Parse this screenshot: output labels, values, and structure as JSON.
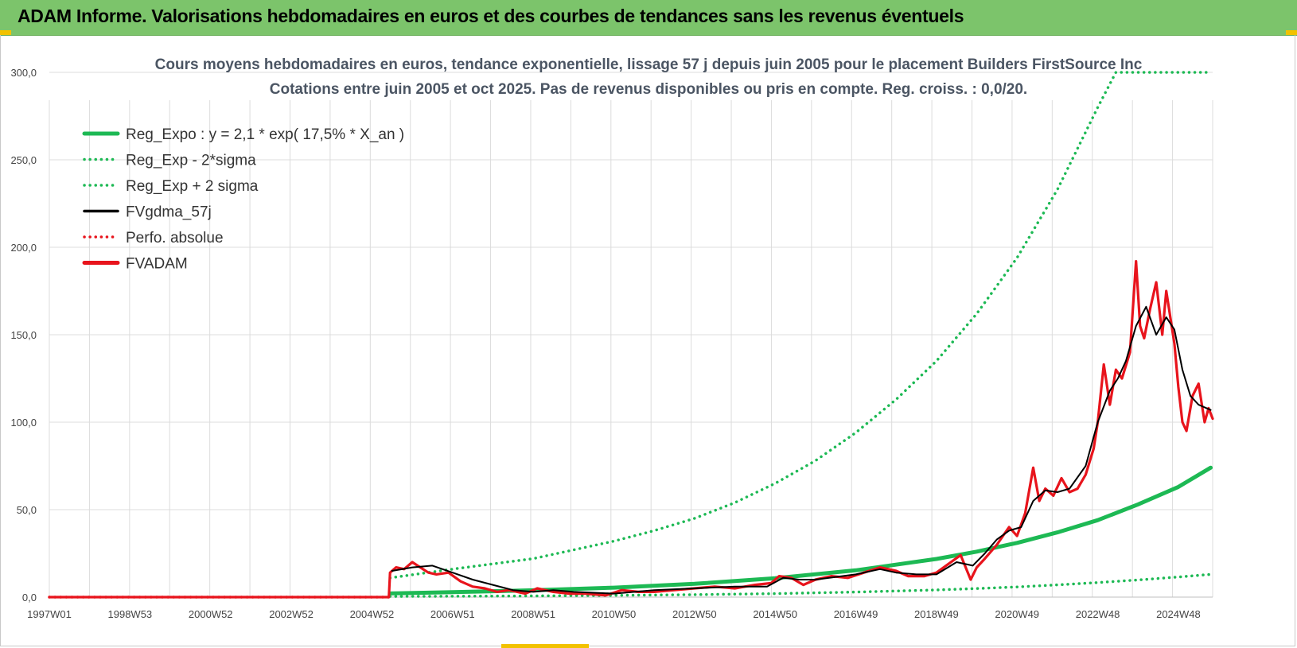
{
  "header": {
    "title": "ADAM Informe. Valorisations hebdomadaires en euros et des courbes de tendances sans les revenus éventuels"
  },
  "colors": {
    "banner": "#7cc46b",
    "trend_green": "#1db954",
    "gdma_black": "#000000",
    "adam_red": "#e8141c",
    "grid": "#dcdcdc"
  },
  "chart_data": {
    "type": "line",
    "title": "Cours moyens hebdomadaires en euros, tendance exponentielle, lissage 57 j depuis juin 2005 pour le placement Builders FirstSource Inc",
    "subtitle": "Cotations entre juin 2005 et oct 2025. Pas de revenus disponibles ou pris en compte. Reg. croiss. : 0,0/20.",
    "xlabel": "",
    "ylabel": "",
    "x_ticks": [
      "1997W01",
      "1998W53",
      "2000W52",
      "2002W52",
      "2004W52",
      "2006W51",
      "2008W51",
      "2010W50",
      "2012W50",
      "2014W50",
      "2016W49",
      "2018W49",
      "2020W49",
      "2022W48",
      "2024W48"
    ],
    "y_ticks": [
      "0,0",
      "50,0",
      "100,0",
      "150,0",
      "200,0",
      "250,0",
      "300,0"
    ],
    "xlim": [
      1997.0,
      2025.85
    ],
    "ylim": [
      0,
      300
    ],
    "grid": true,
    "legend_position": "top-left",
    "legend": [
      "Reg_Expo : y = 2,1 * exp( 17,5% *  X_an )",
      "Reg_Exp - 2*sigma",
      "Reg_Exp + 2 sigma",
      "FVgdma_57j",
      "Perfo. absolue",
      "FVADAM"
    ],
    "series": [
      {
        "name": "Reg_Expo : y = 2,1 * exp( 17,5% *  X_an )",
        "style": "solid-thick",
        "color": "#1db954",
        "x": [
          2005.45,
          2007,
          2009,
          2011,
          2013,
          2015,
          2017,
          2019,
          2020,
          2021,
          2022,
          2023,
          2024,
          2025,
          2025.8
        ],
        "y": [
          2.1,
          2.8,
          3.9,
          5.4,
          7.6,
          10.8,
          15.3,
          21.8,
          26,
          31,
          37,
          44,
          53,
          63,
          74
        ]
      },
      {
        "name": "Reg_Exp - 2*sigma",
        "style": "dotted",
        "color": "#1db954",
        "x": [
          2005.45,
          2007,
          2009,
          2011,
          2013,
          2015,
          2017,
          2019,
          2020,
          2021,
          2022,
          2023,
          2024,
          2025,
          2025.8
        ],
        "y": [
          0.4,
          0.5,
          0.7,
          1.0,
          1.4,
          2.0,
          2.9,
          4.1,
          4.9,
          5.8,
          7.0,
          8.3,
          9.8,
          11.5,
          13
        ]
      },
      {
        "name": "Reg_Exp + 2 sigma",
        "style": "dotted",
        "color": "#1db954",
        "x": [
          2005.45,
          2007,
          2009,
          2010,
          2011,
          2012,
          2013,
          2014,
          2015,
          2016,
          2017,
          2018,
          2019,
          2020,
          2021,
          2022,
          2023,
          2023.45,
          2024,
          2025,
          2025.8
        ],
        "y": [
          11,
          16,
          22,
          27,
          32,
          38,
          45,
          54,
          65,
          78,
          94,
          113,
          135,
          162,
          194,
          233,
          280,
          300,
          300,
          300,
          300
        ]
      },
      {
        "name": "FVgdma_57j",
        "style": "solid",
        "color": "#000000",
        "x": [
          2005.5,
          2006,
          2006.5,
          2007,
          2007.5,
          2008,
          2008.5,
          2009,
          2009.5,
          2010,
          2011,
          2012,
          2013,
          2014,
          2014.8,
          2015.2,
          2015.6,
          2016,
          2017,
          2017.6,
          2018,
          2018.5,
          2019,
          2019.5,
          2019.9,
          2020.2,
          2020.5,
          2020.8,
          2021.1,
          2021.4,
          2021.7,
          2022,
          2022.3,
          2022.7,
          2023,
          2023.3,
          2023.5,
          2023.7,
          2023.95,
          2024.2,
          2024.45,
          2024.7,
          2024.9,
          2025.1,
          2025.3,
          2025.5,
          2025.7,
          2025.8
        ],
        "y": [
          15,
          17,
          18,
          14,
          10,
          7,
          4,
          3,
          4,
          3,
          2,
          4,
          5,
          6,
          6,
          11,
          10,
          10,
          13,
          16,
          14,
          13,
          13,
          20,
          18,
          25,
          33,
          38,
          40,
          55,
          61,
          60,
          62,
          75,
          100,
          118,
          125,
          135,
          155,
          166,
          150,
          160,
          153,
          130,
          115,
          110,
          108,
          107
        ]
      },
      {
        "name": "Perfo. absolue",
        "style": "dotted",
        "color": "#e8141c",
        "x": [
          1997.0,
          2005.45
        ],
        "y": [
          0,
          0
        ]
      },
      {
        "name": "FVADAM",
        "style": "solid-thick",
        "color": "#e8141c",
        "x": [
          1997.0,
          2005.42,
          2005.45,
          2005.6,
          2005.8,
          2006.0,
          2006.2,
          2006.4,
          2006.6,
          2006.9,
          2007.2,
          2007.5,
          2007.8,
          2008.1,
          2008.4,
          2008.8,
          2009.1,
          2009.5,
          2009.9,
          2010.3,
          2010.8,
          2011.2,
          2011.6,
          2012.0,
          2012.5,
          2013.0,
          2013.5,
          2014.0,
          2014.5,
          2014.9,
          2015.1,
          2015.4,
          2015.7,
          2016.0,
          2016.4,
          2016.8,
          2017.2,
          2017.6,
          2018.0,
          2018.3,
          2018.7,
          2019.0,
          2019.3,
          2019.6,
          2019.85,
          2020.0,
          2020.2,
          2020.5,
          2020.8,
          2021.0,
          2021.2,
          2021.4,
          2021.55,
          2021.7,
          2021.9,
          2022.1,
          2022.3,
          2022.5,
          2022.7,
          2022.9,
          2023.0,
          2023.15,
          2023.3,
          2023.45,
          2023.6,
          2023.8,
          2023.95,
          2024.05,
          2024.15,
          2024.3,
          2024.45,
          2024.6,
          2024.7,
          2024.8,
          2024.9,
          2025.0,
          2025.1,
          2025.2,
          2025.35,
          2025.5,
          2025.65,
          2025.75,
          2025.85
        ],
        "y": [
          0,
          0,
          14,
          17,
          16,
          20,
          17,
          14,
          13,
          14,
          9,
          6,
          5,
          3,
          4,
          2,
          5,
          3,
          2,
          2,
          1,
          4,
          3,
          3,
          4,
          5,
          6,
          5,
          7,
          8,
          12,
          11,
          7,
          10,
          12,
          11,
          14,
          17,
          15,
          12,
          12,
          14,
          19,
          24,
          10,
          17,
          22,
          30,
          40,
          35,
          48,
          74,
          55,
          62,
          58,
          68,
          60,
          62,
          70,
          85,
          100,
          133,
          110,
          130,
          125,
          140,
          192,
          155,
          148,
          165,
          180,
          150,
          175,
          160,
          145,
          120,
          100,
          95,
          115,
          122,
          100,
          108,
          102
        ]
      }
    ]
  }
}
